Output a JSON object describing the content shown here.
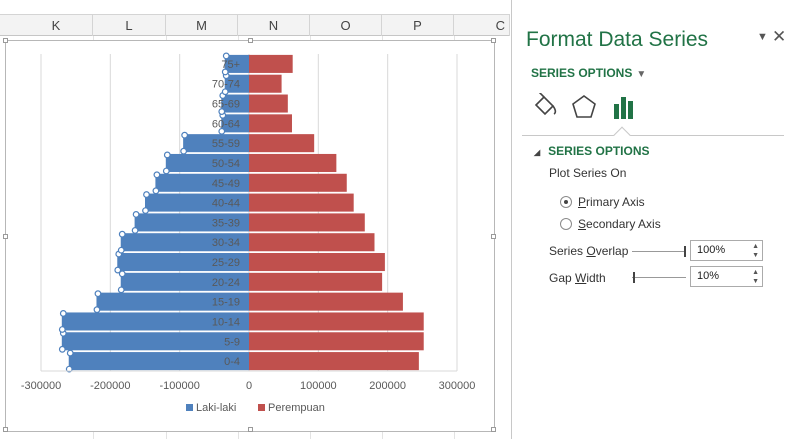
{
  "columns": [
    "K",
    "L",
    "M",
    "N",
    "O",
    "P",
    "C"
  ],
  "chart": {
    "legend_position": "bottom",
    "grid": true
  },
  "chart_data": {
    "type": "bar",
    "orientation": "horizontal",
    "title": "",
    "categories": [
      "0-4",
      "5-9",
      "10-14",
      "15-19",
      "20-24",
      "25-29",
      "30-34",
      "35-39",
      "40-44",
      "45-49",
      "50-54",
      "55-59",
      "60-64",
      "65-69",
      "70-74",
      "75+"
    ],
    "series": [
      {
        "name": "Laki-laki",
        "color": "#4f81bd",
        "values": [
          -260000,
          -270000,
          -270000,
          -220000,
          -185000,
          -190000,
          -185000,
          -165000,
          -150000,
          -135000,
          -120000,
          -95000,
          -40000,
          -40000,
          -35000,
          -35000
        ]
      },
      {
        "name": "Perempuan",
        "color": "#c0504d",
        "values": [
          245000,
          252000,
          252000,
          222000,
          192000,
          196000,
          181000,
          167000,
          151000,
          141000,
          126000,
          94000,
          62000,
          56000,
          47000,
          63000
        ]
      }
    ],
    "xlim": [
      -300000,
      300000
    ],
    "xticks": [
      -300000,
      -200000,
      -100000,
      0,
      100000,
      200000,
      300000
    ],
    "xtick_labels": [
      "-300000",
      "-200000",
      "-100000",
      "0",
      "100000",
      "200000",
      "300000"
    ],
    "selected_series": "Laki-laki"
  },
  "pane": {
    "title": "Format Data Series",
    "menu_icon": "chevron-down-icon",
    "close_icon": "close-icon",
    "series_options_dropdown": "SERIES OPTIONS",
    "tabs": [
      {
        "icon": "paint-bucket-icon"
      },
      {
        "icon": "pentagon-icon"
      },
      {
        "icon": "bar-chart-icon",
        "active": true
      }
    ],
    "section_title": "SERIES OPTIONS",
    "plot_series_on": "Plot Series On",
    "primary_axis_prefix": "",
    "primary_axis_ul": "P",
    "primary_axis_rest": "rimary Axis",
    "secondary_axis_ul": "S",
    "secondary_axis_rest": "econdary Axis",
    "primary_selected": true,
    "overlap_label_pre": "Series ",
    "overlap_label_ul": "O",
    "overlap_label_rest": "verlap",
    "overlap_value": "100%",
    "overlap_level": 1.0,
    "gap_label_pre": "Gap ",
    "gap_label_ul": "W",
    "gap_label_rest": "idth",
    "gap_value": "10%",
    "gap_level": 0.02
  }
}
